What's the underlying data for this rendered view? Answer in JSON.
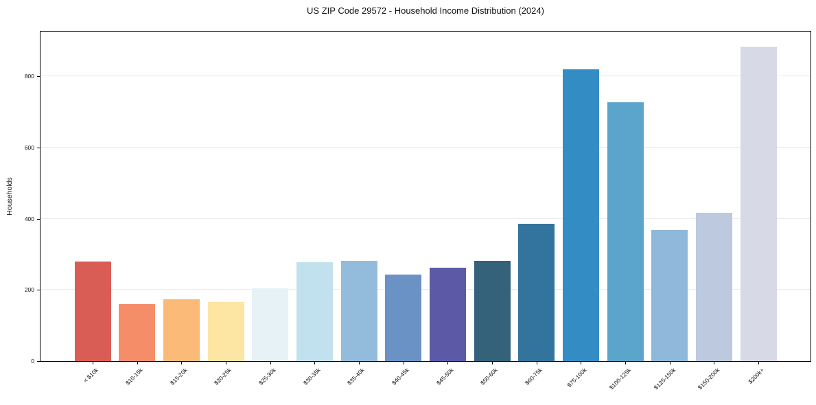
{
  "chart_data": {
    "type": "bar",
    "title": "US ZIP Code 29572 - Household Income Distribution (2024)",
    "xlabel": "",
    "ylabel": "Households",
    "ylim": [
      0,
      926
    ],
    "yticks": [
      0,
      200,
      400,
      600,
      800
    ],
    "grid": "horizontal-light",
    "legend": "none",
    "categories": [
      "< $10k",
      "$10-15k",
      "$15-20k",
      "$20-25k",
      "$25-30k",
      "$30-35k",
      "$35-40k",
      "$40-45k",
      "$45-50k",
      "$50-60k",
      "$60-75k",
      "$75-100k",
      "$100-125k",
      "$125-150k",
      "$150-200k",
      "$200k+"
    ],
    "values": [
      280,
      160,
      173,
      165,
      205,
      277,
      281,
      243,
      262,
      281,
      385,
      820,
      728,
      368,
      417,
      883
    ],
    "bar_colors": [
      "#d95c55",
      "#f68d69",
      "#fbba78",
      "#fde5a4",
      "#e7f2f6",
      "#c2e1ee",
      "#93bcdc",
      "#6b92c4",
      "#5c5aa7",
      "#34627a",
      "#32749d",
      "#348cc5",
      "#5ba4cb",
      "#90b8da",
      "#bcc9de",
      "#d7d9e6"
    ],
    "spine_color": "#000000",
    "grid_color": "#ebebeb",
    "background_color": "#ffffff"
  }
}
